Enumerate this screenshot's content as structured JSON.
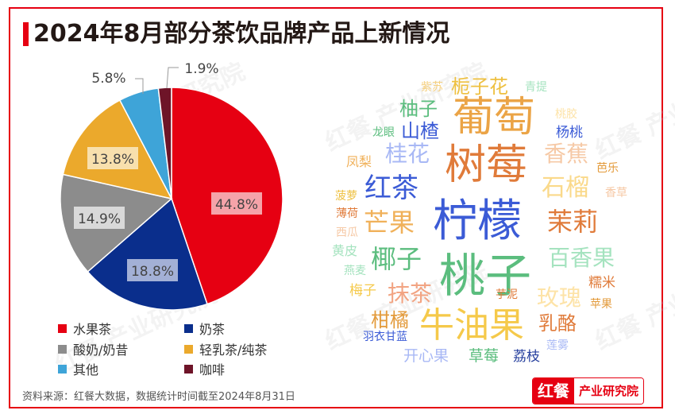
{
  "title": "2024年8月部分茶饮品牌产品上新情况",
  "colors": {
    "accent": "#e60012",
    "title_text": "#231815"
  },
  "chart_data": [
    {
      "type": "pie",
      "title": "2024年8月部分茶饮品牌产品上新情况",
      "categories": [
        "水果茶",
        "奶茶",
        "酸奶/奶昔",
        "轻乳茶/纯茶",
        "其他",
        "咖啡"
      ],
      "values": [
        44.8,
        18.8,
        14.9,
        13.8,
        5.8,
        1.9
      ],
      "labels": [
        "44.8%",
        "18.8%",
        "14.9%",
        "13.8%",
        "5.8%",
        "1.9%"
      ],
      "colors": [
        "#e60012",
        "#0a2e8c",
        "#8c8c8c",
        "#eba92c",
        "#3ea4d8",
        "#6e1428"
      ],
      "start_angle": "12 o'clock, clockwise",
      "legend_position": "bottom"
    },
    {
      "type": "wordcloud",
      "words": [
        {
          "text": "柠檬",
          "size": 56,
          "color": "#3b5bd6"
        },
        {
          "text": "桃子",
          "size": 56,
          "color": "#5bbd7e"
        },
        {
          "text": "树莓",
          "size": 50,
          "color": "#e07b3a"
        },
        {
          "text": "葡萄",
          "size": 50,
          "color": "#eba446"
        },
        {
          "text": "牛油果",
          "size": 44,
          "color": "#f5c94a"
        },
        {
          "text": "红茶",
          "size": 36,
          "color": "#3b5bd6"
        },
        {
          "text": "芒果",
          "size": 34,
          "color": "#f0b15a"
        },
        {
          "text": "茉莉",
          "size": 32,
          "color": "#e07b3a"
        },
        {
          "text": "椰子",
          "size": 32,
          "color": "#5bbd7e"
        },
        {
          "text": "百香果",
          "size": 30,
          "color": "#a5e3bf"
        },
        {
          "text": "石榴",
          "size": 30,
          "color": "#fad98a"
        },
        {
          "text": "桂花",
          "size": 28,
          "color": "#a8b8f5"
        },
        {
          "text": "香蕉",
          "size": 28,
          "color": "#f6c9a6"
        },
        {
          "text": "抹茶",
          "size": 28,
          "color": "#f2a483"
        },
        {
          "text": "玫瑰",
          "size": 28,
          "color": "#fde3a7"
        },
        {
          "text": "柚子",
          "size": 24,
          "color": "#5bbd7e"
        },
        {
          "text": "栀子花",
          "size": 24,
          "color": "#eec040"
        },
        {
          "text": "山楂",
          "size": 24,
          "color": "#3b5bd6"
        },
        {
          "text": "柑橘",
          "size": 24,
          "color": "#e39a3a"
        },
        {
          "text": "乳酪",
          "size": 24,
          "color": "#e07b3a"
        },
        {
          "text": "开心果",
          "size": 20,
          "color": "#a8b8f5"
        },
        {
          "text": "草莓",
          "size": 20,
          "color": "#5bbd7e"
        },
        {
          "text": "荔枝",
          "size": 18,
          "color": "#27409e"
        },
        {
          "text": "杨桃",
          "size": 18,
          "color": "#3b5bd6"
        },
        {
          "text": "糯米",
          "size": 18,
          "color": "#e07b3a"
        },
        {
          "text": "梅子",
          "size": 17,
          "color": "#f5c94a"
        },
        {
          "text": "凤梨",
          "size": 17,
          "color": "#f0b15a"
        },
        {
          "text": "黄皮",
          "size": 17,
          "color": "#a5e3bf"
        },
        {
          "text": "羽衣甘蓝",
          "size": 14,
          "color": "#3b5bd6"
        },
        {
          "text": "紫苏",
          "size": 14,
          "color": "#f5d080"
        },
        {
          "text": "青提",
          "size": 14,
          "color": "#a5e3bf"
        },
        {
          "text": "桃胶",
          "size": 14,
          "color": "#fde3a7"
        },
        {
          "text": "龙眼",
          "size": 14,
          "color": "#5bbd7e"
        },
        {
          "text": "芭乐",
          "size": 14,
          "color": "#e39a3a"
        },
        {
          "text": "菠萝",
          "size": 14,
          "color": "#eec040"
        },
        {
          "text": "香草",
          "size": 14,
          "color": "#f6c9a6"
        },
        {
          "text": "薄荷",
          "size": 14,
          "color": "#e07b3a"
        },
        {
          "text": "西瓜",
          "size": 14,
          "color": "#f6c9a6"
        },
        {
          "text": "燕麦",
          "size": 14,
          "color": "#a5e3bf"
        },
        {
          "text": "芋泥",
          "size": 14,
          "color": "#e07b3a"
        },
        {
          "text": "苹果",
          "size": 14,
          "color": "#e39a3a"
        },
        {
          "text": "莲雾",
          "size": 14,
          "color": "#a8b8f5"
        }
      ]
    }
  ],
  "legend": [
    {
      "label": "水果茶",
      "color": "#e60012"
    },
    {
      "label": "奶茶",
      "color": "#0a2e8c"
    },
    {
      "label": "酸奶/奶昔",
      "color": "#8c8c8c"
    },
    {
      "label": "轻乳茶/纯茶",
      "color": "#eba92c"
    },
    {
      "label": "其他",
      "color": "#3ea4d8"
    },
    {
      "label": "咖啡",
      "color": "#6e1428"
    }
  ],
  "pie_labels": {
    "fruit_tea": "44.8%",
    "milk_tea": "18.8%",
    "yogurt": "14.9%",
    "light_milk_tea": "13.8%",
    "other": "5.8%",
    "coffee": "1.9%"
  },
  "wordcloud": {
    "w1": "柠檬",
    "w2": "桃子",
    "w3": "树莓",
    "w4": "葡萄",
    "w5": "牛油果",
    "w6": "红茶",
    "w7": "芒果",
    "w8": "茉莉",
    "w9": "椰子",
    "w10": "百香果",
    "w11": "石榴",
    "w12": "桂花",
    "w13": "香蕉",
    "w14": "抹茶",
    "w15": "玫瑰",
    "w16": "柚子",
    "w17": "栀子花",
    "w18": "山楂",
    "w19": "柑橘",
    "w20": "乳酪",
    "w21": "开心果",
    "w22": "草莓",
    "w23": "荔枝",
    "w24": "杨桃",
    "w25": "糯米",
    "w26": "梅子",
    "w27": "凤梨",
    "w28": "黄皮",
    "w29": "羽衣甘蓝",
    "w30": "紫苏",
    "w31": "青提",
    "w32": "桃胶",
    "w33": "龙眼",
    "w34": "芭乐",
    "w35": "菠萝",
    "w36": "香草",
    "w37": "薄荷",
    "w38": "西瓜",
    "w39": "燕麦",
    "w40": "芋泥",
    "w41": "苹果",
    "w42": "莲雾"
  },
  "footer": {
    "source": "资料来源：红餐大数据，数据统计时间截至2024年8月31日",
    "logo_left": "红餐",
    "logo_right": "产业研究院"
  },
  "watermark": "红餐 产业研究院"
}
